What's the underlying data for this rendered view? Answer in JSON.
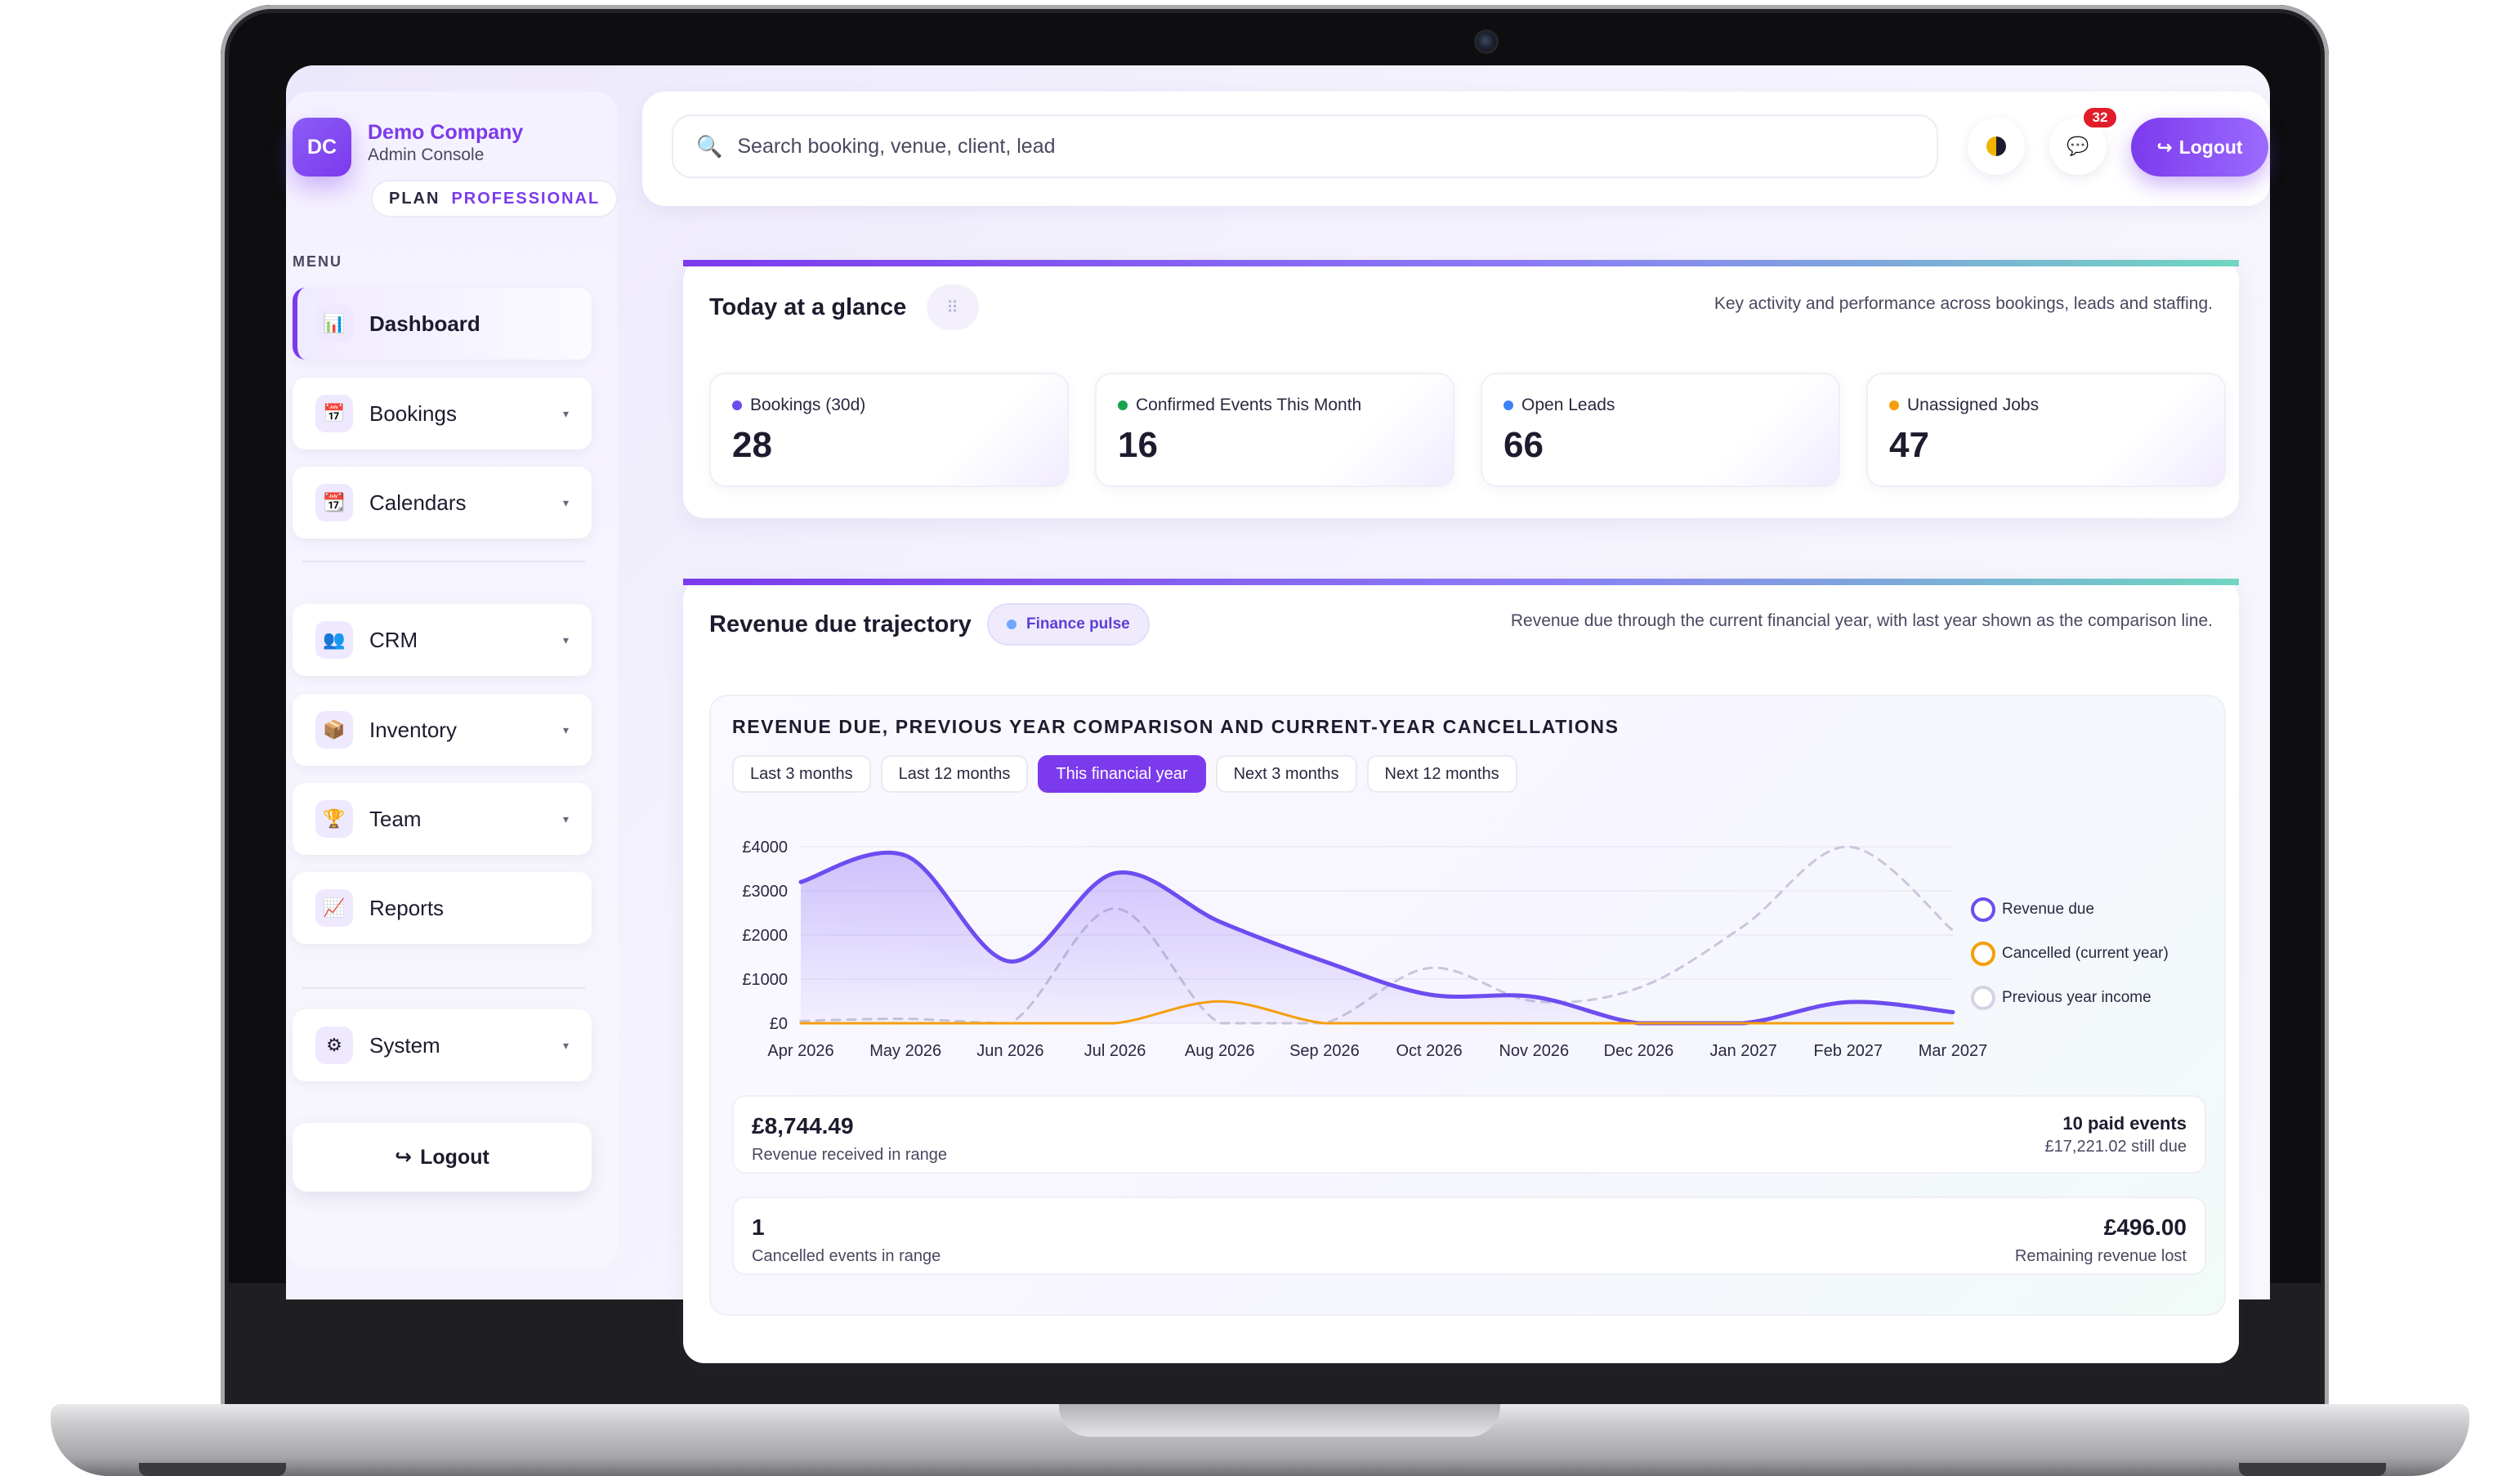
{
  "brand": {
    "initials": "DC",
    "name": "Demo Company",
    "subtitle": "Admin Console",
    "plan_label": "PLAN",
    "plan_value": "PROFESSIONAL"
  },
  "sidebar": {
    "menu_label": "MENU",
    "items": [
      {
        "label": "Dashboard",
        "icon": "bar-chart-icon",
        "glyph": "📊",
        "active": true,
        "has_caret": false
      },
      {
        "label": "Bookings",
        "icon": "calendar-page-icon",
        "glyph": "📅",
        "has_caret": true
      },
      {
        "label": "Calendars",
        "icon": "calendar-icon",
        "glyph": "📆",
        "has_caret": true
      },
      {
        "label": "CRM",
        "icon": "users-icon",
        "glyph": "👥",
        "has_caret": true
      },
      {
        "label": "Inventory",
        "icon": "package-icon",
        "glyph": "📦",
        "has_caret": true
      },
      {
        "label": "Team",
        "icon": "trophy-icon",
        "glyph": "🏆",
        "has_caret": true
      },
      {
        "label": "Reports",
        "icon": "trend-chart-icon",
        "glyph": "📈",
        "has_caret": false
      },
      {
        "label": "System",
        "icon": "gear-icon",
        "glyph": "⚙",
        "has_caret": true
      }
    ],
    "caret": "▾",
    "logout_label": "Logout",
    "logout_glyph": "↪"
  },
  "header": {
    "search_placeholder": "Search booking, venue, client, lead",
    "notification_count": "32",
    "logout_label": "Logout",
    "logout_glyph": "↪"
  },
  "glance": {
    "title": "Today at a glance",
    "description": "Key activity and performance across bookings, leads and staffing.",
    "drag_glyph": "⠿",
    "kpis": [
      {
        "label": "Bookings (30d)",
        "value": "28",
        "dot_color": "#6d4cf0"
      },
      {
        "label": "Confirmed Events This Month",
        "value": "16",
        "dot_color": "#16a34a"
      },
      {
        "label": "Open Leads",
        "value": "66",
        "dot_color": "#3b82f6"
      },
      {
        "label": "Unassigned Jobs",
        "value": "47",
        "dot_color": "#f59e0b"
      }
    ]
  },
  "revenue": {
    "title": "Revenue due trajectory",
    "chip": "Finance pulse",
    "description": "Revenue due through the current financial year, with last year shown as the comparison line.",
    "chart_heading": "REVENUE DUE, PREVIOUS YEAR COMPARISON AND CURRENT-YEAR CANCELLATIONS",
    "ranges": [
      "Last 3 months",
      "Last 12 months",
      "This financial year",
      "Next 3 months",
      "Next 12 months"
    ],
    "active_range": "This financial year",
    "stats": {
      "received_value": "£8,744.49",
      "received_label": "Revenue received in range",
      "paid_events": "10 paid events",
      "still_due": "£17,221.02 still due",
      "cancelled_count": "1",
      "cancelled_label": "Cancelled events in range",
      "lost_value": "£496.00",
      "lost_label": "Remaining revenue lost"
    }
  },
  "chart_data": {
    "type": "line",
    "title": "REVENUE DUE, PREVIOUS YEAR COMPARISON AND CURRENT-YEAR CANCELLATIONS",
    "x": [
      "Apr 2026",
      "May 2026",
      "Jun 2026",
      "Jul 2026",
      "Aug 2026",
      "Sep 2026",
      "Oct 2026",
      "Nov 2026",
      "Dec 2026",
      "Jan 2027",
      "Feb 2027",
      "Mar 2027"
    ],
    "y_ticks": [
      "£0",
      "£1000",
      "£2000",
      "£3000",
      "£4000"
    ],
    "ylim": [
      0,
      4000
    ],
    "grid": true,
    "legend_position": "right",
    "series": [
      {
        "name": "Revenue due",
        "color": "#6d4cf0",
        "style": "solid-area",
        "values": [
          3200,
          3800,
          1400,
          3400,
          2300,
          1400,
          650,
          600,
          0,
          0,
          480,
          250
        ]
      },
      {
        "name": "Cancelled (current year)",
        "color": "#f59e0b",
        "style": "solid",
        "values": [
          0,
          0,
          0,
          0,
          496,
          0,
          0,
          0,
          0,
          0,
          0,
          0
        ]
      },
      {
        "name": "Previous year income",
        "color": "#c9c6da",
        "style": "dashed",
        "values": [
          50,
          100,
          0,
          2600,
          0,
          0,
          1250,
          500,
          800,
          2200,
          4000,
          2100
        ]
      }
    ]
  }
}
